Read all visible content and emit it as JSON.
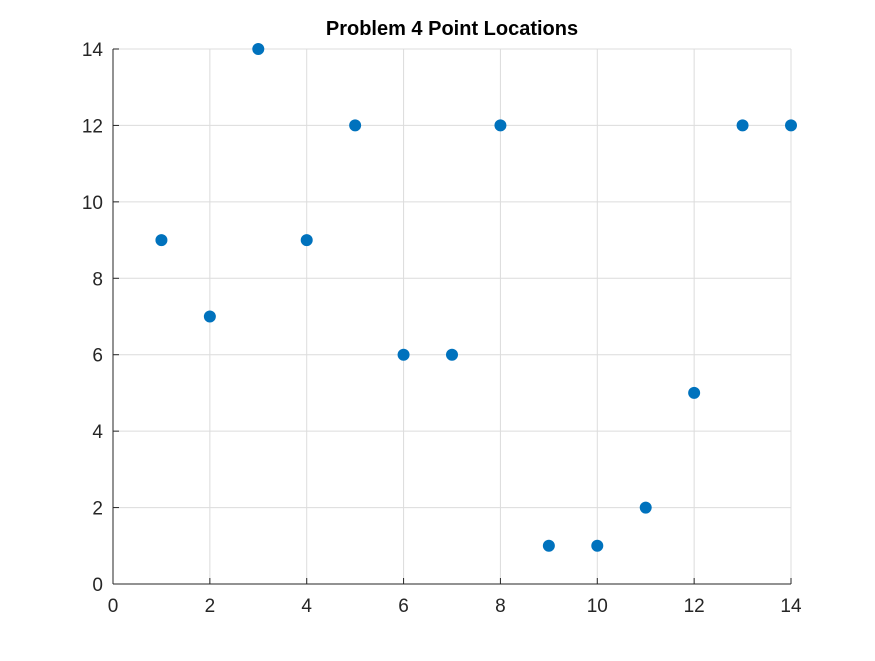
{
  "chart_data": {
    "type": "scatter",
    "title": "Problem 4 Point Locations",
    "xlabel": "",
    "ylabel": "",
    "xlim": [
      0,
      14
    ],
    "ylim": [
      0,
      14
    ],
    "xticks": [
      0,
      2,
      4,
      6,
      8,
      10,
      12,
      14
    ],
    "yticks": [
      0,
      2,
      4,
      6,
      8,
      10,
      12,
      14
    ],
    "grid": true,
    "legend": "none",
    "series": [
      {
        "color": "#0072BD",
        "marker": "filled-circle",
        "x": [
          1,
          2,
          3,
          4,
          5,
          6,
          7,
          8,
          9,
          10,
          11,
          12,
          13,
          14
        ],
        "y": [
          9,
          7,
          14,
          9,
          12,
          6,
          6,
          12,
          1,
          1,
          2,
          5,
          12,
          12
        ]
      }
    ]
  },
  "colors": {
    "background": "#ffffff",
    "axis": "#262626",
    "grid": "#dcdcdc",
    "marker": "#0072BD"
  }
}
